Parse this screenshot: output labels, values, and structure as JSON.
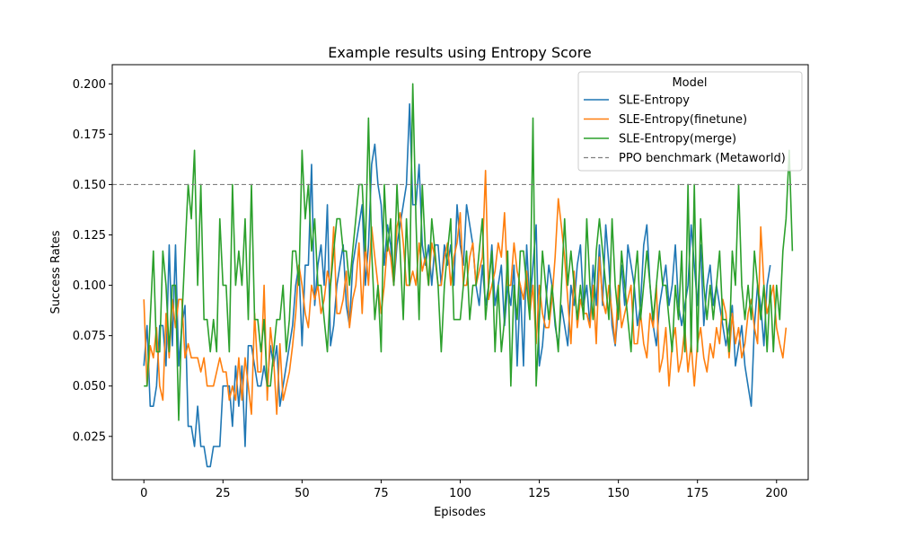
{
  "chart_data": {
    "type": "line",
    "title": "Example results using Entropy Score",
    "xlabel": "Episodes",
    "ylabel": "Success Rates",
    "xlim": [
      -10,
      210
    ],
    "ylim": [
      0.0035,
      0.2095
    ],
    "xticks": [
      0,
      25,
      50,
      75,
      100,
      125,
      150,
      175,
      200
    ],
    "xtick_labels": [
      "0",
      "25",
      "50",
      "75",
      "100",
      "125",
      "150",
      "175",
      "200"
    ],
    "yticks": [
      0.025,
      0.05,
      0.075,
      0.1,
      0.125,
      0.15,
      0.175,
      0.2
    ],
    "ytick_labels": [
      "0.025",
      "0.050",
      "0.075",
      "0.100",
      "0.125",
      "0.150",
      "0.175",
      "0.200"
    ],
    "grid": false,
    "legend": {
      "title": "Model",
      "placement": "top-right"
    },
    "hline": {
      "name": "PPO benchmark (Metaworld)",
      "y": 0.15,
      "color": "#808080",
      "style": "dashed"
    },
    "series": [
      {
        "name": "SLE-Entropy",
        "color": "#1f77b4",
        "values": [
          0.06,
          0.08,
          0.04,
          0.04,
          0.05,
          0.08,
          0.08,
          0.06,
          0.12,
          0.07,
          0.12,
          0.06,
          0.08,
          0.09,
          0.03,
          0.03,
          0.02,
          0.04,
          0.02,
          0.02,
          0.01,
          0.01,
          0.02,
          0.02,
          0.02,
          0.05,
          0.05,
          0.05,
          0.03,
          0.06,
          0.04,
          0.06,
          0.02,
          0.07,
          0.07,
          0.06,
          0.05,
          0.05,
          0.06,
          0.05,
          0.07,
          0.06,
          0.07,
          0.04,
          0.05,
          0.06,
          0.07,
          0.08,
          0.1,
          0.11,
          0.07,
          0.11,
          0.11,
          0.16,
          0.09,
          0.11,
          0.12,
          0.1,
          0.14,
          0.07,
          0.08,
          0.1,
          0.11,
          0.12,
          0.09,
          0.08,
          0.11,
          0.12,
          0.13,
          0.14,
          0.1,
          0.12,
          0.16,
          0.17,
          0.15,
          0.14,
          0.11,
          0.13,
          0.12,
          0.1,
          0.12,
          0.13,
          0.14,
          0.15,
          0.19,
          0.14,
          0.14,
          0.16,
          0.12,
          0.11,
          0.12,
          0.1,
          0.12,
          0.12,
          0.1,
          0.12,
          0.11,
          0.12,
          0.1,
          0.14,
          0.12,
          0.11,
          0.14,
          0.13,
          0.12,
          0.1,
          0.09,
          0.11,
          0.09,
          0.1,
          0.12,
          0.09,
          0.1,
          0.11,
          0.08,
          0.1,
          0.09,
          0.11,
          0.06,
          0.1,
          0.06,
          0.12,
          0.09,
          0.11,
          0.13,
          0.06,
          0.07,
          0.09,
          0.11,
          0.1,
          0.08,
          0.07,
          0.09,
          0.08,
          0.07,
          0.1,
          0.09,
          0.11,
          0.12,
          0.09,
          0.1,
          0.08,
          0.11,
          0.09,
          0.12,
          0.09,
          0.13,
          0.11,
          0.08,
          0.07,
          0.09,
          0.11,
          0.09,
          0.12,
          0.11,
          0.1,
          0.08,
          0.09,
          0.12,
          0.13,
          0.1,
          0.08,
          0.07,
          0.09,
          0.1,
          0.11,
          0.09,
          0.1,
          0.12,
          0.09,
          0.08,
          0.09,
          0.1,
          0.13,
          0.11,
          0.09,
          0.12,
          0.08,
          0.1,
          0.11,
          0.09,
          0.1,
          0.09,
          0.08,
          0.07,
          0.08,
          0.09,
          0.06,
          0.07,
          0.08,
          0.06,
          0.05,
          0.04,
          0.08,
          0.1,
          0.09,
          0.07,
          0.1,
          0.11
        ]
      },
      {
        "name": "SLE-Entropy(finetune)",
        "color": "#ff7f0e",
        "values": [
          0.093,
          0.05,
          0.07,
          0.064,
          0.079,
          0.05,
          0.043,
          0.086,
          0.064,
          0.093,
          0.079,
          0.093,
          0.093,
          0.064,
          0.071,
          0.064,
          0.064,
          0.064,
          0.057,
          0.064,
          0.05,
          0.05,
          0.05,
          0.057,
          0.064,
          0.057,
          0.057,
          0.043,
          0.05,
          0.043,
          0.064,
          0.043,
          0.064,
          0.05,
          0.036,
          0.086,
          0.057,
          0.057,
          0.1,
          0.043,
          0.079,
          0.064,
          0.036,
          0.071,
          0.043,
          0.05,
          0.057,
          0.07,
          0.086,
          0.11,
          0.1,
          0.086,
          0.079,
          0.1,
          0.093,
          0.1,
          0.086,
          0.093,
          0.107,
          0.1,
          0.129,
          0.086,
          0.086,
          0.093,
          0.107,
          0.079,
          0.093,
          0.1,
          0.121,
          0.086,
          0.121,
          0.1,
          0.129,
          0.114,
          0.1,
          0.086,
          0.1,
          0.121,
          0.114,
          0.1,
          0.129,
          0.136,
          0.121,
          0.1,
          0.1,
          0.107,
          0.1,
          0.121,
          0.107,
          0.114,
          0.1,
          0.121,
          0.114,
          0.1,
          0.1,
          0.114,
          0.121,
          0.1,
          0.114,
          0.121,
          0.136,
          0.1,
          0.1,
          0.114,
          0.121,
          0.1,
          0.107,
          0.114,
          0.157,
          0.093,
          0.1,
          0.107,
          0.121,
          0.114,
          0.136,
          0.1,
          0.1,
          0.121,
          0.107,
          0.1,
          0.093,
          0.107,
          0.086,
          0.1,
          0.071,
          0.1,
          0.086,
          0.079,
          0.079,
          0.093,
          0.114,
          0.143,
          0.129,
          0.114,
          0.093,
          0.071,
          0.107,
          0.079,
          0.093,
          0.086,
          0.086,
          0.079,
          0.1,
          0.071,
          0.114,
          0.093,
          0.086,
          0.1,
          0.086,
          0.071,
          0.1,
          0.079,
          0.086,
          0.093,
          0.1,
          0.071,
          0.071,
          0.086,
          0.071,
          0.064,
          0.086,
          0.079,
          0.1,
          0.057,
          0.064,
          0.079,
          0.05,
          0.071,
          0.079,
          0.057,
          0.064,
          0.079,
          0.057,
          0.071,
          0.05,
          0.071,
          0.079,
          0.064,
          0.057,
          0.071,
          0.064,
          0.079,
          0.071,
          0.093,
          0.086,
          0.064,
          0.086,
          0.071,
          0.079,
          0.064,
          0.071,
          0.086,
          0.093,
          0.079,
          0.071,
          0.129,
          0.1,
          0.086,
          0.093,
          0.1,
          0.079,
          0.071,
          0.064,
          0.079
        ]
      },
      {
        "name": "SLE-Entropy(merge)",
        "color": "#2ca02c",
        "values": [
          0.05,
          0.05,
          0.083,
          0.117,
          0.067,
          0.067,
          0.117,
          0.1,
          0.067,
          0.1,
          0.1,
          0.033,
          0.083,
          0.117,
          0.15,
          0.133,
          0.167,
          0.1,
          0.15,
          0.083,
          0.083,
          0.067,
          0.083,
          0.067,
          0.133,
          0.1,
          0.1,
          0.067,
          0.15,
          0.1,
          0.117,
          0.1,
          0.133,
          0.083,
          0.15,
          0.083,
          0.083,
          0.067,
          0.083,
          0.05,
          0.05,
          0.067,
          0.083,
          0.083,
          0.1,
          0.067,
          0.083,
          0.117,
          0.117,
          0.1,
          0.167,
          0.133,
          0.15,
          0.117,
          0.133,
          0.1,
          0.1,
          0.083,
          0.067,
          0.1,
          0.117,
          0.133,
          0.133,
          0.117,
          0.117,
          0.1,
          0.117,
          0.133,
          0.15,
          0.15,
          0.117,
          0.183,
          0.117,
          0.083,
          0.1,
          0.067,
          0.15,
          0.117,
          0.133,
          0.1,
          0.15,
          0.117,
          0.083,
          0.133,
          0.1,
          0.2,
          0.133,
          0.083,
          0.15,
          0.117,
          0.1,
          0.133,
          0.117,
          0.1,
          0.067,
          0.1,
          0.117,
          0.133,
          0.083,
          0.083,
          0.083,
          0.1,
          0.117,
          0.083,
          0.1,
          0.1,
          0.117,
          0.133,
          0.083,
          0.1,
          0.117,
          0.067,
          0.1,
          0.067,
          0.083,
          0.117,
          0.05,
          0.1,
          0.083,
          0.117,
          0.117,
          0.1,
          0.083,
          0.183,
          0.05,
          0.083,
          0.117,
          0.1,
          0.083,
          0.1,
          0.083,
          0.067,
          0.1,
          0.133,
          0.1,
          0.117,
          0.1,
          0.083,
          0.1,
          0.083,
          0.133,
          0.1,
          0.083,
          0.117,
          0.133,
          0.117,
          0.1,
          0.083,
          0.133,
          0.1,
          0.083,
          0.117,
          0.1,
          0.083,
          0.067,
          0.1,
          0.117,
          0.083,
          0.1,
          0.117,
          0.1,
          0.083,
          0.1,
          0.117,
          0.1,
          0.1,
          0.083,
          0.067,
          0.1,
          0.083,
          0.117,
          0.067,
          0.15,
          0.067,
          0.15,
          0.067,
          0.133,
          0.1,
          0.083,
          0.1,
          0.083,
          0.1,
          0.117,
          0.083,
          0.083,
          0.067,
          0.117,
          0.1,
          0.15,
          0.1,
          0.083,
          0.1,
          0.083,
          0.117,
          0.1,
          0.083,
          0.1,
          0.067,
          0.1,
          0.067,
          0.1,
          0.083,
          0.117,
          0.133,
          0.167,
          0.117
        ]
      }
    ]
  }
}
